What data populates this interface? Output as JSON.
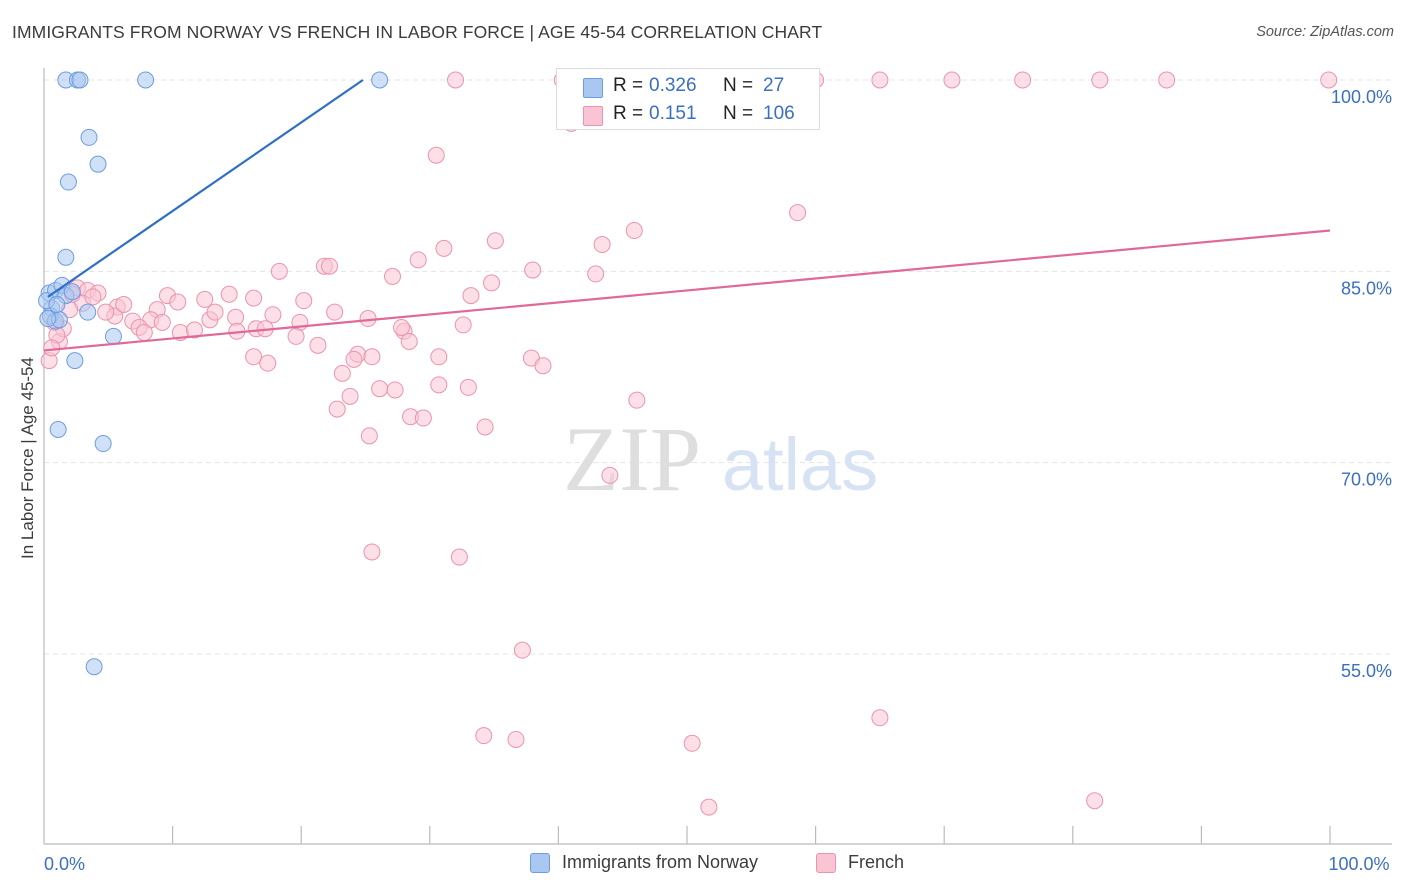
{
  "title": "IMMIGRANTS FROM NORWAY VS FRENCH IN LABOR FORCE | AGE 45-54 CORRELATION CHART",
  "source": "Source: ZipAtlas.com",
  "watermark": {
    "zip": "ZIP",
    "atlas": "atlas"
  },
  "stats_legend": {
    "rows": [
      {
        "r_label": "R =",
        "r_value": "0.326",
        "n_label": "N =",
        "n_value": "27",
        "color": "#a9c7f0",
        "border": "#6d9de0"
      },
      {
        "r_label": "R =",
        "r_value": "0.151",
        "n_label": "N =",
        "n_value": "106",
        "color": "#f9c4d4",
        "border": "#ec93ae"
      }
    ]
  },
  "bottom_legend": [
    {
      "label": "Immigrants from Norway",
      "color": "#a9c7f0",
      "border": "#6d9de0"
    },
    {
      "label": "French",
      "color": "#f9c4d4",
      "border": "#ec93ae"
    }
  ],
  "chart_data": {
    "type": "scatter",
    "ylabel": "In Labor Force | Age 45-54",
    "xlim": [
      0,
      100
    ],
    "ylim": [
      41.5,
      102
    ],
    "x_tick_labels": [
      {
        "value": 0,
        "label": "0.0%"
      },
      {
        "value": 100,
        "label": "100.0%"
      }
    ],
    "y_tick_labels": [
      {
        "value": 55,
        "label": "55.0%"
      },
      {
        "value": 70,
        "label": "70.0%"
      },
      {
        "value": 85,
        "label": "85.0%"
      },
      {
        "value": 100,
        "label": "100.0%"
      }
    ],
    "grid": true,
    "series": [
      {
        "name": "Immigrants from Norway",
        "color": "#a9c7f0",
        "stroke": "#6d9de0",
        "trend_color": "#2f6fc6",
        "trend": {
          "x": [
            0.3,
            24.8
          ],
          "y": [
            83.0,
            100.0
          ]
        },
        "points": [
          [
            1.7,
            100
          ],
          [
            2.6,
            100
          ],
          [
            2.8,
            100
          ],
          [
            7.9,
            100
          ],
          [
            26.1,
            100
          ],
          [
            3.5,
            95.5
          ],
          [
            4.2,
            93.4
          ],
          [
            1.9,
            92.0
          ],
          [
            1.7,
            86.1
          ],
          [
            0.4,
            83.3
          ],
          [
            0.9,
            83.5
          ],
          [
            1.4,
            83.9
          ],
          [
            1.7,
            83.1
          ],
          [
            0.6,
            82.1
          ],
          [
            0.5,
            81.5
          ],
          [
            0.9,
            81.1
          ],
          [
            1.2,
            81.2
          ],
          [
            3.4,
            81.8
          ],
          [
            5.4,
            79.9
          ],
          [
            2.4,
            78.0
          ],
          [
            1.1,
            72.6
          ],
          [
            4.6,
            71.5
          ],
          [
            3.9,
            54.0
          ],
          [
            0.2,
            82.7
          ],
          [
            2.2,
            83.4
          ],
          [
            1.0,
            82.4
          ],
          [
            0.3,
            81.3
          ]
        ]
      },
      {
        "name": "French",
        "color": "#f9c4d4",
        "stroke": "#ec93ae",
        "trend_color": "#e0699a",
        "trend": {
          "x": [
            0,
            100
          ],
          "y": [
            78.8,
            88.2
          ]
        },
        "points": [
          [
            32.0,
            100
          ],
          [
            40.3,
            100
          ],
          [
            43.0,
            100
          ],
          [
            52.2,
            100
          ],
          [
            54.7,
            100
          ],
          [
            57.7,
            100
          ],
          [
            60.0,
            100
          ],
          [
            65.0,
            100
          ],
          [
            70.6,
            100
          ],
          [
            76.1,
            100
          ],
          [
            82.1,
            100
          ],
          [
            87.3,
            100
          ],
          [
            99.9,
            100
          ],
          [
            41.0,
            96.6
          ],
          [
            30.5,
            94.1
          ],
          [
            58.6,
            89.6
          ],
          [
            45.9,
            88.2
          ],
          [
            35.1,
            87.4
          ],
          [
            43.4,
            87.1
          ],
          [
            31.1,
            86.8
          ],
          [
            29.1,
            85.9
          ],
          [
            21.8,
            85.4
          ],
          [
            22.2,
            85.4
          ],
          [
            18.3,
            85.0
          ],
          [
            38.0,
            85.1
          ],
          [
            42.9,
            84.8
          ],
          [
            27.1,
            84.6
          ],
          [
            34.8,
            84.1
          ],
          [
            33.2,
            83.1
          ],
          [
            2.6,
            83.7
          ],
          [
            3.4,
            83.5
          ],
          [
            4.2,
            83.3
          ],
          [
            9.6,
            83.1
          ],
          [
            14.4,
            83.2
          ],
          [
            16.3,
            82.9
          ],
          [
            12.5,
            82.8
          ],
          [
            10.4,
            82.6
          ],
          [
            20.2,
            82.7
          ],
          [
            5.7,
            82.2
          ],
          [
            8.8,
            82.0
          ],
          [
            22.6,
            81.8
          ],
          [
            17.8,
            81.6
          ],
          [
            25.2,
            81.3
          ],
          [
            12.9,
            81.2
          ],
          [
            14.9,
            81.4
          ],
          [
            5.5,
            81.5
          ],
          [
            6.9,
            81.1
          ],
          [
            8.3,
            81.2
          ],
          [
            19.9,
            81.0
          ],
          [
            7.4,
            80.6
          ],
          [
            10.6,
            80.2
          ],
          [
            15.0,
            80.3
          ],
          [
            16.5,
            80.5
          ],
          [
            17.2,
            80.5
          ],
          [
            28.0,
            80.3
          ],
          [
            32.6,
            80.8
          ],
          [
            27.8,
            80.6
          ],
          [
            19.6,
            79.9
          ],
          [
            28.4,
            79.5
          ],
          [
            21.3,
            79.2
          ],
          [
            24.4,
            78.5
          ],
          [
            30.7,
            78.3
          ],
          [
            37.9,
            78.2
          ],
          [
            25.5,
            78.3
          ],
          [
            24.1,
            78.1
          ],
          [
            16.3,
            78.3
          ],
          [
            17.4,
            77.8
          ],
          [
            38.8,
            77.6
          ],
          [
            23.2,
            77.0
          ],
          [
            30.7,
            76.1
          ],
          [
            33.0,
            75.9
          ],
          [
            26.1,
            75.8
          ],
          [
            27.3,
            75.7
          ],
          [
            23.8,
            75.2
          ],
          [
            46.1,
            74.9
          ],
          [
            22.8,
            74.2
          ],
          [
            28.5,
            73.6
          ],
          [
            29.5,
            73.5
          ],
          [
            34.3,
            72.8
          ],
          [
            25.3,
            72.1
          ],
          [
            44.0,
            69.0
          ],
          [
            25.5,
            63.0
          ],
          [
            32.3,
            62.6
          ],
          [
            37.2,
            55.3
          ],
          [
            34.2,
            48.6
          ],
          [
            36.7,
            48.3
          ],
          [
            50.4,
            48.0
          ],
          [
            65.0,
            50.0
          ],
          [
            81.7,
            43.5
          ],
          [
            51.7,
            43.0
          ],
          [
            0.4,
            78.0
          ],
          [
            1.2,
            79.5
          ],
          [
            1.5,
            80.5
          ],
          [
            0.8,
            81.0
          ],
          [
            3.0,
            82.5
          ],
          [
            3.8,
            83.0
          ],
          [
            2.0,
            82.0
          ],
          [
            4.8,
            81.8
          ],
          [
            1.0,
            80.0
          ],
          [
            2.2,
            83.2
          ],
          [
            0.6,
            79.0
          ],
          [
            6.2,
            82.4
          ],
          [
            9.2,
            81.0
          ],
          [
            11.7,
            80.4
          ],
          [
            7.8,
            80.2
          ],
          [
            13.3,
            81.8
          ]
        ]
      }
    ]
  }
}
